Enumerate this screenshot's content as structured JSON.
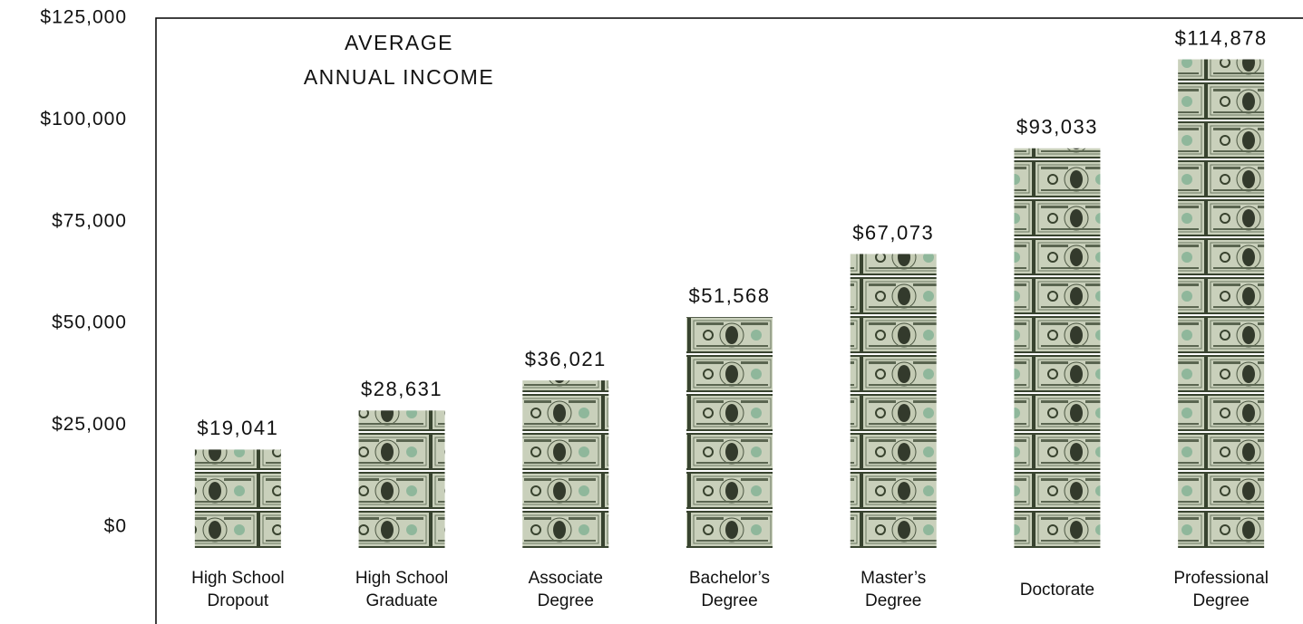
{
  "chart_data": {
    "type": "bar",
    "title": "AVERAGE\nANNUAL INCOME",
    "categories": [
      "High School Dropout",
      "High School Graduate",
      "Associate Degree",
      "Bachelor’s Degree",
      "Master’s Degree",
      "Doctorate",
      "Professional Degree"
    ],
    "values": [
      19041,
      28631,
      36021,
      51568,
      67073,
      93033,
      114878
    ],
    "value_labels": [
      "$19,041",
      "$28,631",
      "$36,021",
      "$51,568",
      "$67,073",
      "$93,033",
      "$114,878"
    ],
    "color": "#c7cfb8",
    "ylim": [
      0,
      125000
    ],
    "yticks": [
      {
        "value": 0,
        "label": "$0"
      },
      {
        "value": 25000,
        "label": "$25,000"
      },
      {
        "value": 50000,
        "label": "$50,000"
      },
      {
        "value": 75000,
        "label": "$75,000"
      },
      {
        "value": 100000,
        "label": "$100,000"
      },
      {
        "value": 125000,
        "label": "$125,000"
      }
    ],
    "grid": false
  }
}
